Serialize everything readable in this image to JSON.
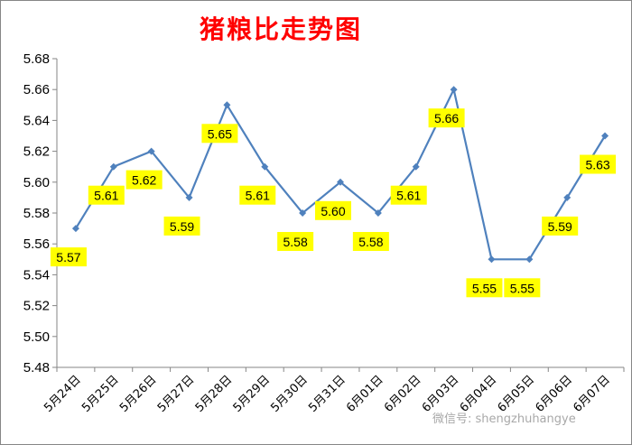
{
  "chart_data": {
    "type": "line",
    "title": "猪粮比走势图",
    "categories": [
      "5月24日",
      "5月25日",
      "5月26日",
      "5月27日",
      "5月28日",
      "5月29日",
      "5月30日",
      "5月31日",
      "6月01日",
      "6月02日",
      "6月03日",
      "6月04日",
      "6月05日",
      "6月06日",
      "6月07日"
    ],
    "values": [
      5.57,
      5.61,
      5.62,
      5.59,
      5.65,
      5.61,
      5.58,
      5.6,
      5.58,
      5.61,
      5.66,
      5.55,
      5.55,
      5.59,
      5.63
    ],
    "data_labels": [
      "5.57",
      "5.61",
      "5.62",
      "5.59",
      "5.65",
      "5.61",
      "5.58",
      "5.60",
      "5.58",
      "5.61",
      "5.66",
      "5.55",
      "5.55",
      "5.59",
      "5.63"
    ],
    "ylim": [
      5.48,
      5.68
    ],
    "yticks": [
      "5.48",
      "5.50",
      "5.52",
      "5.54",
      "5.56",
      "5.58",
      "5.60",
      "5.62",
      "5.64",
      "5.66",
      "5.68"
    ],
    "grid": false,
    "legend": "none",
    "colors": {
      "line": "#4f81bd",
      "label_bg": "#ffff00",
      "title": "#ff0000"
    }
  },
  "watermark": "微信号: shengzhuhangye"
}
